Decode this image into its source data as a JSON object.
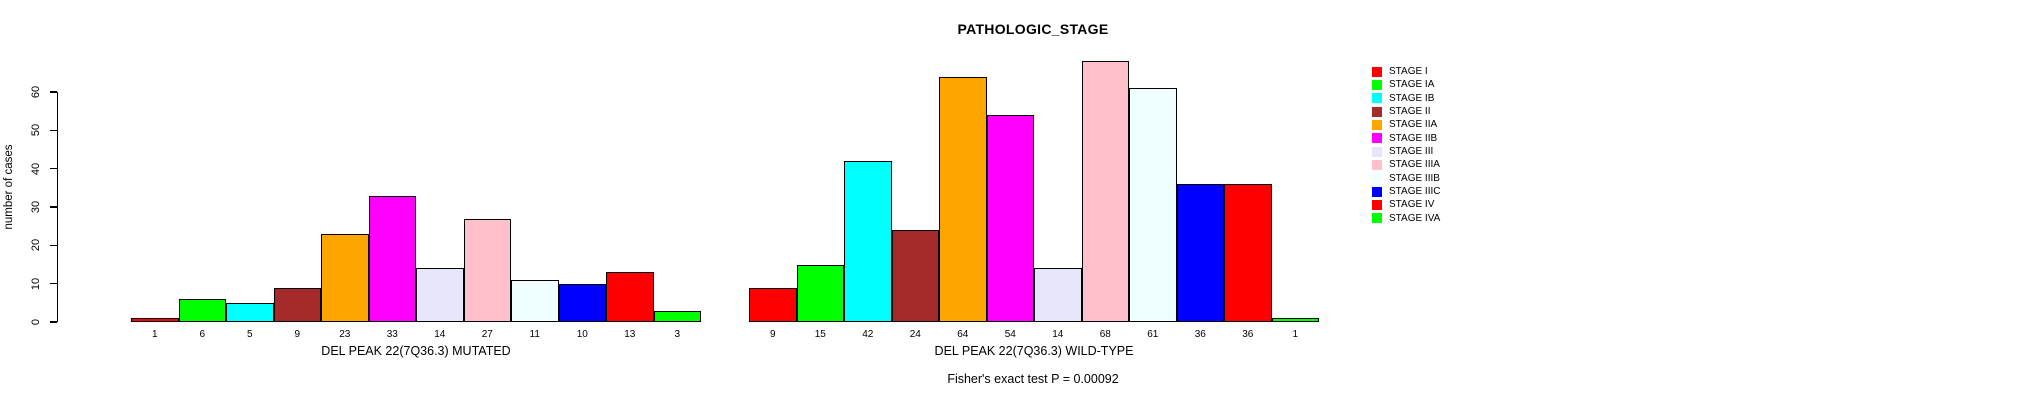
{
  "chart_data": {
    "type": "bar",
    "title": "PATHOLOGIC_STAGE",
    "ylabel": "number of cases",
    "xlabel": "",
    "footnote": "Fisher's exact test P = 0.00092",
    "ylim": [
      0,
      70
    ],
    "yticks": [
      0,
      10,
      20,
      30,
      40,
      50,
      60
    ],
    "grid": false,
    "legend_position": "right",
    "categories": [
      "STAGE I",
      "STAGE IA",
      "STAGE IB",
      "STAGE II",
      "STAGE IIA",
      "STAGE IIB",
      "STAGE III",
      "STAGE IIIA",
      "STAGE IIIB",
      "STAGE IIIC",
      "STAGE IV",
      "STAGE IVA"
    ],
    "colors": [
      "#FF0000",
      "#00FF00",
      "#00FFFF",
      "#A52A2A",
      "#FFA500",
      "#FF00FF",
      "#E6E6FA",
      "#FFC0CB",
      "#F0FFFF",
      "#0000FF",
      "#FF0000",
      "#00FF00"
    ],
    "bar_border_color": "#000000",
    "groups": [
      {
        "label": "DEL PEAK 22(7Q36.3) MUTATED",
        "values": [
          1,
          6,
          5,
          9,
          23,
          33,
          14,
          27,
          11,
          10,
          13,
          3
        ]
      },
      {
        "label": "DEL PEAK 22(7Q36.3) WILD-TYPE",
        "values": [
          9,
          15,
          42,
          24,
          64,
          54,
          14,
          68,
          61,
          36,
          36,
          1
        ]
      }
    ]
  }
}
